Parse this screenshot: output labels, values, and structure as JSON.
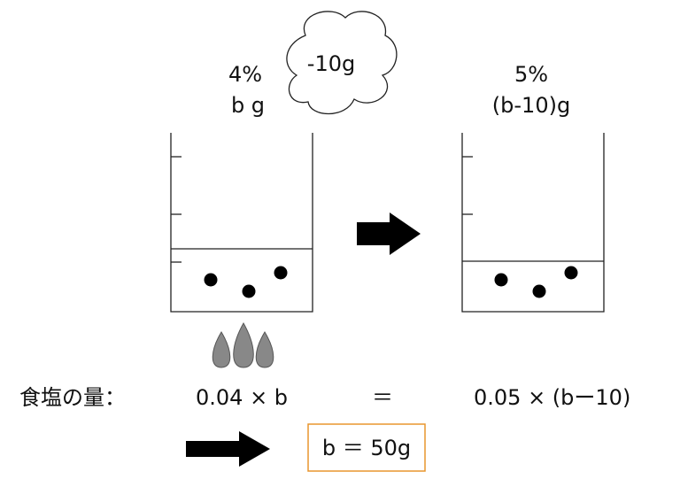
{
  "left_beaker": {
    "concentration": "4%",
    "mass": "b g"
  },
  "evaporation": "-10g",
  "right_beaker": {
    "concentration": "5%",
    "mass": "(b-10)g"
  },
  "equation": {
    "label": "食塩の量：",
    "left": "0.04 × b",
    "equals": "＝",
    "right": "0.05 × (bー10)"
  },
  "answer": "b ＝ 50g"
}
